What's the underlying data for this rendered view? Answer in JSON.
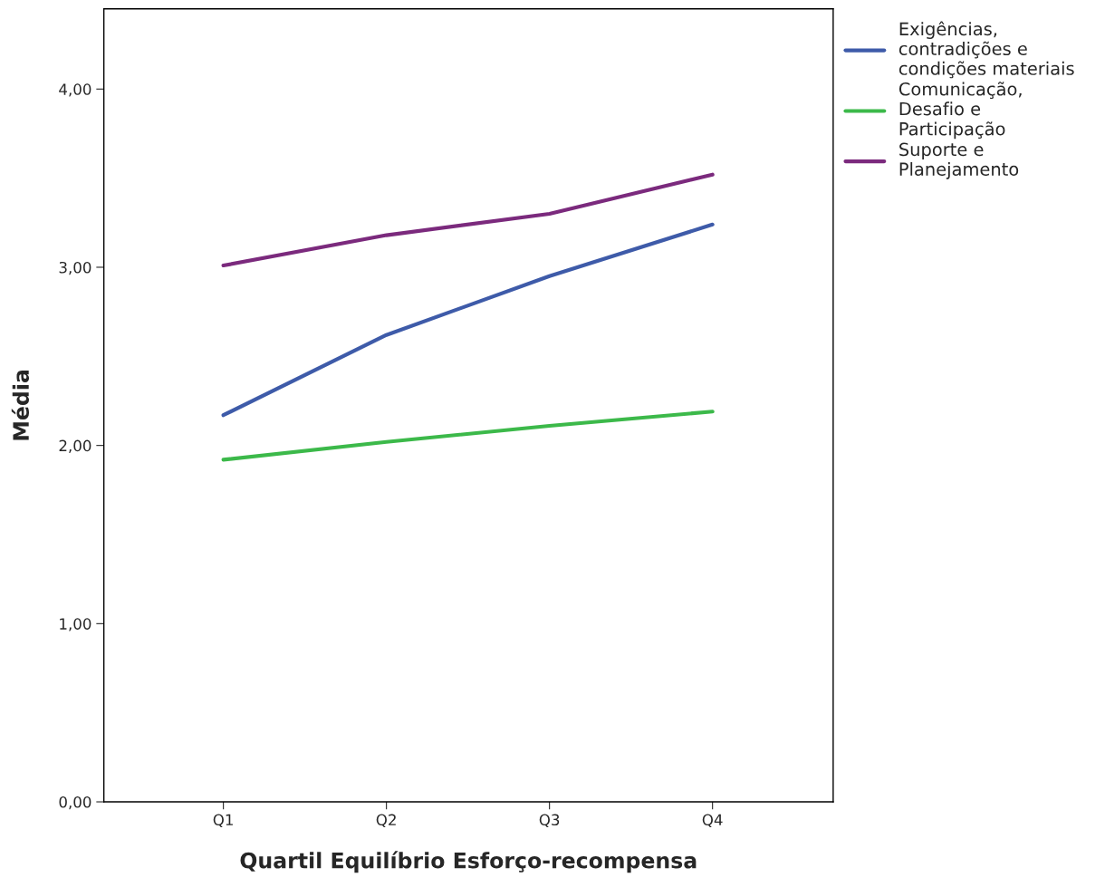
{
  "chart_data": {
    "type": "line",
    "xlabel": "Quartil Equilíbrio Esforço-recompensa",
    "ylabel": "Média",
    "categories": [
      "Q1",
      "Q2",
      "Q3",
      "Q4"
    ],
    "series": [
      {
        "name": "Exigências,\ncontradições e\ncondições materiais",
        "color": "#3e5ba9",
        "values": [
          2.17,
          2.62,
          2.95,
          3.24
        ]
      },
      {
        "name": "Comunicação,\nDesafio e\nParticipação",
        "color": "#3cb94a",
        "values": [
          1.92,
          2.02,
          2.11,
          2.19
        ]
      },
      {
        "name": "Suporte e\nPlanejamento",
        "color": "#7b2a7d",
        "values": [
          3.01,
          3.18,
          3.3,
          3.52
        ]
      }
    ],
    "ylim": [
      0,
      4.45
    ],
    "yticks": [
      {
        "value": 0,
        "label": "0,00"
      },
      {
        "value": 1,
        "label": "1,00"
      },
      {
        "value": 2,
        "label": "2,00"
      },
      {
        "value": 3,
        "label": "3,00"
      },
      {
        "value": 4,
        "label": "4,00"
      }
    ],
    "grid": false,
    "legend": "top right",
    "marker": "none",
    "line_style": "solid"
  }
}
